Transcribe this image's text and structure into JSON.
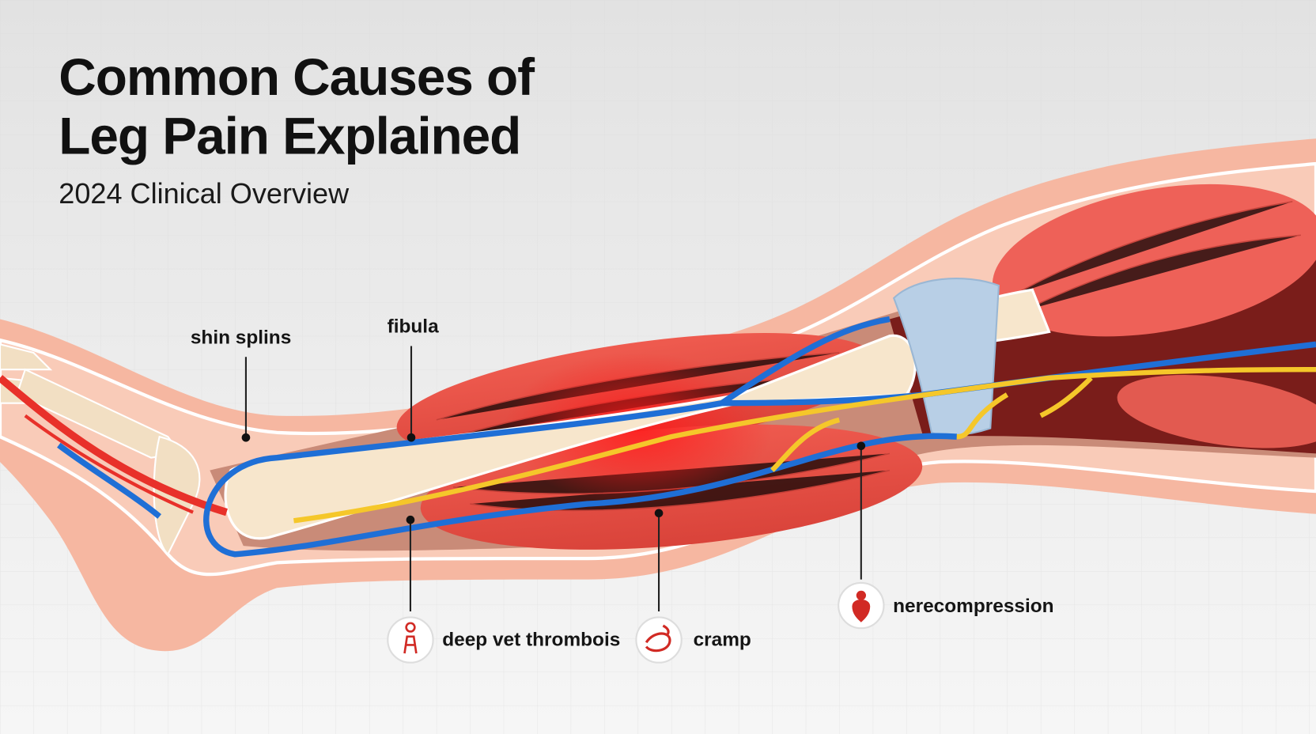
{
  "header": {
    "title_lines": [
      "Common Causes of",
      "Leg Pain Explained"
    ],
    "subtitle": "2024 Clinical Overview"
  },
  "labels": [
    {
      "text": "shin splins"
    },
    {
      "text": "fibula"
    },
    {
      "text": "deep vet thrombois"
    },
    {
      "text": "cramp"
    },
    {
      "text": "nerecompression"
    }
  ]
}
